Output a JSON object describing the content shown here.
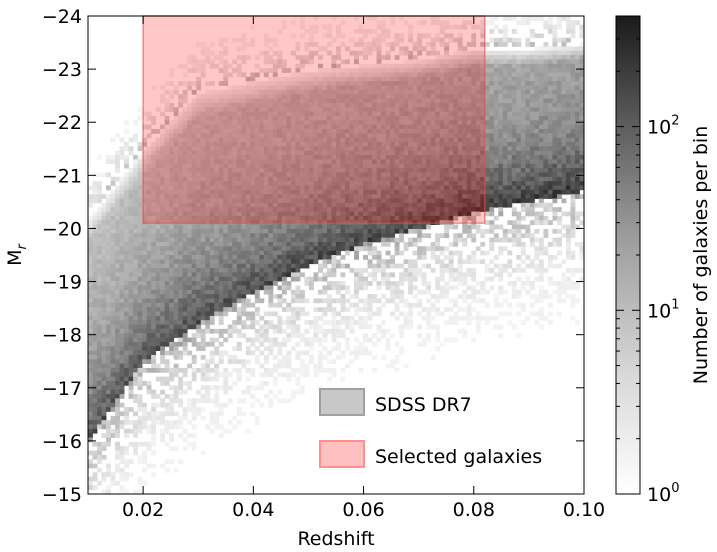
{
  "chart_data": {
    "type": "heatmap",
    "title": "",
    "xlabel": "Redshift",
    "ylabel_main": "M",
    "ylabel_sub": "r",
    "xlim": [
      0.01,
      0.1
    ],
    "ylim": [
      -15,
      -24
    ],
    "y_inverted": true,
    "xticks": [
      0.02,
      0.04,
      0.06,
      0.08,
      0.1
    ],
    "xtick_labels": [
      "0.02",
      "0.04",
      "0.06",
      "0.08",
      "0.10"
    ],
    "yticks": [
      -24,
      -23,
      -22,
      -21,
      -20,
      -19,
      -18,
      -17,
      -16,
      -15
    ],
    "ytick_labels": [
      "−24",
      "−23",
      "−22",
      "−21",
      "−20",
      "−19",
      "−18",
      "−17",
      "−16",
      "−15"
    ],
    "grid": false,
    "legend_position": "bottom-right",
    "series": [
      {
        "name": "SDSS DR7",
        "kind": "2d-histogram",
        "color": "#808080",
        "density_peak_counts": 300,
        "lower_envelope_M": {
          "z": [
            0.01,
            0.02,
            0.03,
            0.04,
            0.05,
            0.06,
            0.07,
            0.08,
            0.09,
            0.1
          ],
          "M": [
            -16.0,
            -17.5,
            -18.2,
            -18.8,
            -19.3,
            -19.7,
            -20.0,
            -20.3,
            -20.5,
            -20.7
          ]
        },
        "upper_envelope_M": {
          "z": [
            0.01,
            0.02,
            0.03,
            0.04,
            0.05,
            0.06,
            0.07,
            0.08,
            0.09,
            0.1
          ],
          "M": [
            -20.2,
            -21.5,
            -22.6,
            -22.8,
            -23.0,
            -23.1,
            -23.2,
            -23.4,
            -23.4,
            -23.5
          ]
        }
      },
      {
        "name": "Selected galaxies",
        "kind": "selection-box",
        "color": "#ff8080",
        "z_range": [
          0.02,
          0.082
        ],
        "M_range": [
          -24,
          -20.1
        ]
      }
    ],
    "colorbar": {
      "label": "Number of galaxies per bin",
      "scale": "log",
      "range": [
        1,
        400
      ],
      "ticks": [
        1,
        10,
        100
      ],
      "tick_labels": [
        {
          "base": "10",
          "exp": "0"
        },
        {
          "base": "10",
          "exp": "1"
        },
        {
          "base": "10",
          "exp": "2"
        }
      ]
    }
  },
  "legend": {
    "items": [
      {
        "label": "SDSS DR7",
        "swatch_fill": "#c8c8c8",
        "swatch_stroke": "#a0a0a0"
      },
      {
        "label": "Selected galaxies",
        "swatch_fill": "#ffc0c0",
        "swatch_stroke": "#ff9090"
      }
    ]
  }
}
